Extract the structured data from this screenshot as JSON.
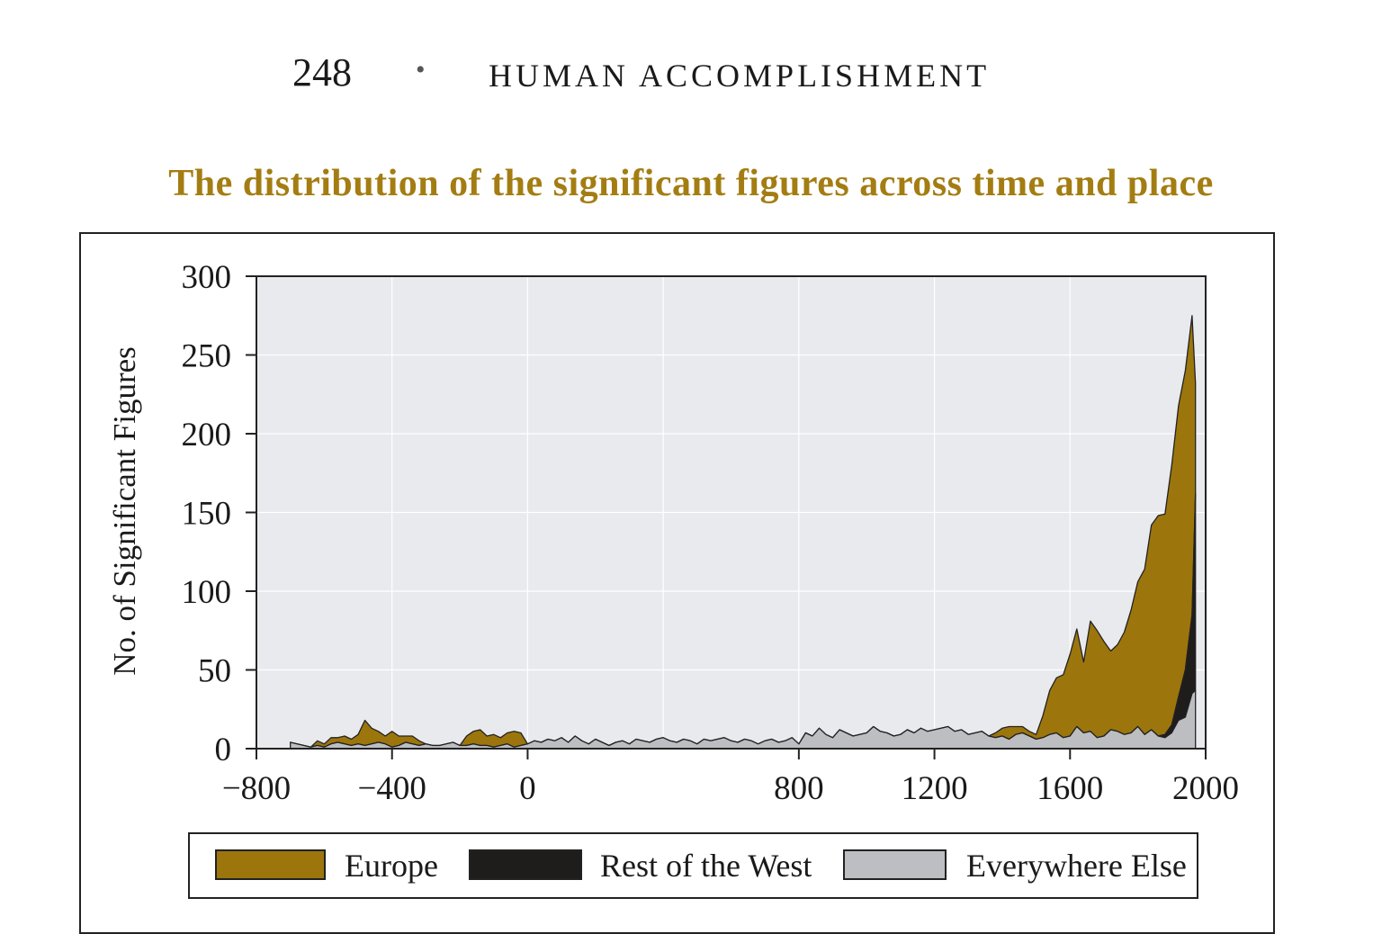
{
  "header": {
    "page_number": "248",
    "separator": "•",
    "book_title": "HUMAN ACCOMPLISHMENT"
  },
  "figure_title": "The distribution of the significant figures across time and place",
  "colors": {
    "europe": "#9c760c",
    "rest_of_west": "#1f1c1c",
    "everywhere_else": "#bdbec2",
    "plot_background": "#e9eaee",
    "title": "#a47d12"
  },
  "chart_data": {
    "type": "area",
    "stacking": "stacked",
    "ylabel": "No. of Significant Figures",
    "xlabel": "",
    "xlim": [
      -800,
      2000
    ],
    "ylim": [
      0,
      300
    ],
    "x_ticks": [
      -800,
      -400,
      0,
      800,
      1200,
      1600,
      2000
    ],
    "x_tick_labels": [
      "−800",
      "−400",
      "0",
      "800",
      "1200",
      "1600",
      "2000"
    ],
    "y_ticks": [
      0,
      50,
      100,
      150,
      200,
      250,
      300
    ],
    "y_tick_labels": [
      "0",
      "50",
      "100",
      "150",
      "200",
      "250",
      "300"
    ],
    "grid_x": [
      -800,
      -400,
      0,
      400,
      800,
      1200,
      1600,
      2000
    ],
    "grid_y": [
      50,
      100,
      150,
      200,
      250,
      300
    ],
    "x": [
      -700,
      -680,
      -660,
      -640,
      -620,
      -600,
      -580,
      -560,
      -540,
      -520,
      -500,
      -480,
      -460,
      -440,
      -420,
      -400,
      -380,
      -360,
      -340,
      -320,
      -300,
      -280,
      -260,
      -240,
      -220,
      -200,
      -180,
      -160,
      -140,
      -120,
      -100,
      -80,
      -60,
      -40,
      -20,
      0,
      20,
      40,
      60,
      80,
      100,
      120,
      140,
      160,
      180,
      200,
      220,
      240,
      260,
      280,
      300,
      320,
      340,
      360,
      380,
      400,
      420,
      440,
      460,
      480,
      500,
      520,
      540,
      560,
      580,
      600,
      620,
      640,
      660,
      680,
      700,
      720,
      740,
      760,
      780,
      800,
      820,
      840,
      860,
      880,
      900,
      920,
      940,
      960,
      980,
      1000,
      1020,
      1040,
      1060,
      1080,
      1100,
      1120,
      1140,
      1160,
      1180,
      1200,
      1220,
      1240,
      1260,
      1280,
      1300,
      1320,
      1340,
      1360,
      1380,
      1400,
      1420,
      1440,
      1460,
      1480,
      1500,
      1520,
      1540,
      1560,
      1580,
      1600,
      1620,
      1640,
      1660,
      1680,
      1700,
      1720,
      1740,
      1760,
      1780,
      1800,
      1820,
      1840,
      1860,
      1880,
      1900,
      1920,
      1940,
      1960,
      1970
    ],
    "series": [
      {
        "name": "Everywhere Else",
        "values": [
          4,
          3,
          2,
          1,
          2,
          1,
          3,
          4,
          3,
          2,
          3,
          2,
          3,
          4,
          3,
          1,
          2,
          4,
          3,
          2,
          3,
          2,
          2,
          3,
          4,
          2,
          2,
          3,
          2,
          2,
          1,
          2,
          3,
          1,
          2,
          3,
          5,
          4,
          6,
          5,
          7,
          4,
          8,
          5,
          3,
          6,
          4,
          2,
          4,
          5,
          3,
          6,
          5,
          4,
          6,
          7,
          5,
          4,
          6,
          5,
          3,
          6,
          5,
          6,
          7,
          5,
          4,
          6,
          5,
          3,
          5,
          6,
          4,
          5,
          7,
          3,
          10,
          8,
          13,
          9,
          7,
          12,
          10,
          8,
          9,
          10,
          14,
          11,
          10,
          8,
          9,
          12,
          10,
          13,
          11,
          12,
          13,
          14,
          11,
          12,
          9,
          10,
          11,
          8,
          7,
          8,
          6,
          9,
          10,
          8,
          6,
          7,
          9,
          10,
          7,
          8,
          14,
          10,
          11,
          7,
          8,
          12,
          11,
          9,
          10,
          14,
          9,
          12,
          8,
          7,
          10,
          18,
          20,
          35,
          37
        ]
      },
      {
        "name": "Rest of the West",
        "values": [
          0,
          0,
          0,
          0,
          0,
          0,
          0,
          0,
          0,
          0,
          0,
          0,
          0,
          0,
          0,
          0,
          0,
          0,
          0,
          0,
          0,
          0,
          0,
          0,
          0,
          0,
          0,
          0,
          0,
          0,
          0,
          0,
          0,
          0,
          0,
          0,
          0,
          0,
          0,
          0,
          0,
          0,
          0,
          0,
          0,
          0,
          0,
          0,
          0,
          0,
          0,
          0,
          0,
          0,
          0,
          0,
          0,
          0,
          0,
          0,
          0,
          0,
          0,
          0,
          0,
          0,
          0,
          0,
          0,
          0,
          0,
          0,
          0,
          0,
          0,
          0,
          0,
          0,
          0,
          0,
          0,
          0,
          0,
          0,
          0,
          0,
          0,
          0,
          0,
          0,
          0,
          0,
          0,
          0,
          0,
          0,
          0,
          0,
          0,
          0,
          0,
          0,
          0,
          0,
          0,
          0,
          0,
          0,
          0,
          0,
          0,
          0,
          0,
          0,
          0,
          0,
          0,
          0,
          0,
          0,
          0,
          0,
          0,
          0,
          0,
          0,
          0,
          0,
          0,
          2,
          5,
          15,
          30,
          50,
          125
        ]
      },
      {
        "name": "Europe",
        "values": [
          0,
          0,
          0,
          0,
          3,
          2,
          4,
          3,
          5,
          4,
          6,
          16,
          10,
          7,
          5,
          10,
          6,
          4,
          5,
          3,
          0,
          0,
          0,
          0,
          0,
          0,
          6,
          8,
          10,
          6,
          8,
          5,
          7,
          10,
          8,
          0,
          0,
          0,
          0,
          0,
          0,
          0,
          0,
          0,
          0,
          0,
          0,
          0,
          0,
          0,
          0,
          0,
          0,
          0,
          0,
          0,
          0,
          0,
          0,
          0,
          0,
          0,
          0,
          0,
          0,
          0,
          0,
          0,
          0,
          0,
          0,
          0,
          0,
          0,
          0,
          0,
          0,
          0,
          0,
          0,
          0,
          0,
          0,
          0,
          0,
          0,
          0,
          0,
          0,
          0,
          0,
          0,
          0,
          0,
          0,
          0,
          0,
          0,
          0,
          0,
          0,
          0,
          0,
          0,
          3,
          5,
          8,
          5,
          4,
          3,
          3,
          14,
          28,
          35,
          40,
          52,
          62,
          45,
          70,
          68,
          60,
          50,
          55,
          65,
          78,
          92,
          105,
          130,
          140,
          140,
          165,
          185,
          190,
          190,
          70
        ]
      }
    ],
    "legend": [
      "Europe",
      "Rest of the West",
      "Everywhere Else"
    ],
    "legend_position": "bottom"
  }
}
